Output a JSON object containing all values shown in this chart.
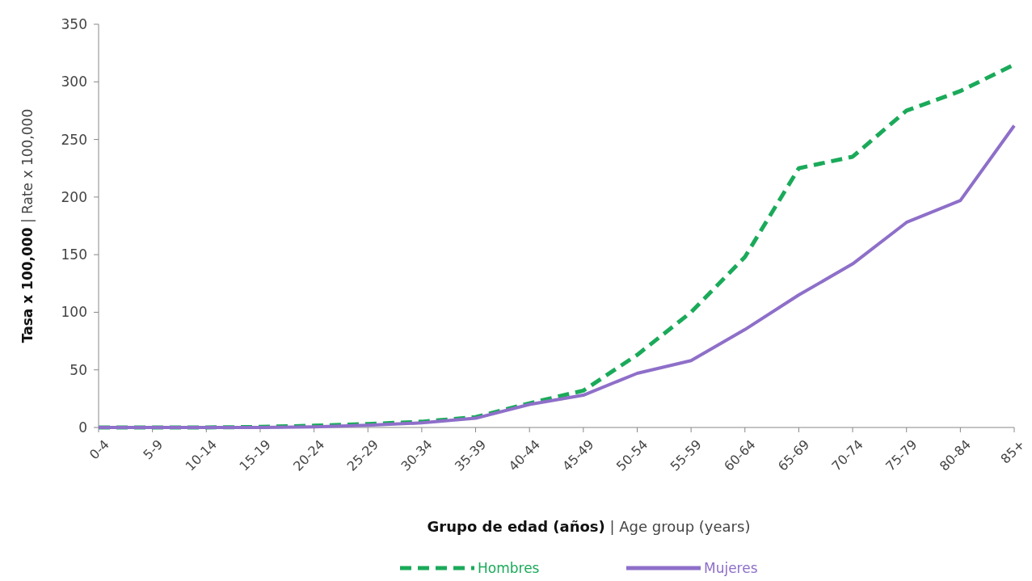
{
  "chart_data": {
    "type": "line",
    "xlabel": "Grupo de edad (años) | Age group (years)",
    "ylabel": "Tasa x 100,000 | Rate x 100,000",
    "categories": [
      "0-4",
      "5-9",
      "10-14",
      "15-19",
      "20-24",
      "25-29",
      "30-34",
      "35-39",
      "40-44",
      "45-49",
      "50-54",
      "55-59",
      "60-64",
      "65-69",
      "70-74",
      "75-79",
      "80-84",
      "85+"
    ],
    "series": [
      {
        "name": "Hombres",
        "color": "#1aaa5a",
        "line_style": "dashed",
        "values": [
          0,
          0,
          0,
          0.5,
          1.5,
          3,
          5,
          9,
          21,
          32,
          63,
          100,
          148,
          225,
          235,
          275,
          292,
          315
        ]
      },
      {
        "name": "Mujeres",
        "color": "#8e6fc9",
        "line_style": "solid",
        "values": [
          0,
          0,
          0,
          0,
          0.5,
          2,
          4,
          8,
          20,
          28,
          47,
          58,
          85,
          115,
          142,
          178,
          197,
          262
        ]
      }
    ],
    "ylim": [
      0,
      350
    ],
    "yticks": [
      0,
      50,
      100,
      150,
      200,
      250,
      300,
      350
    ],
    "grid": false,
    "legend": "bottom",
    "marker": "none"
  }
}
